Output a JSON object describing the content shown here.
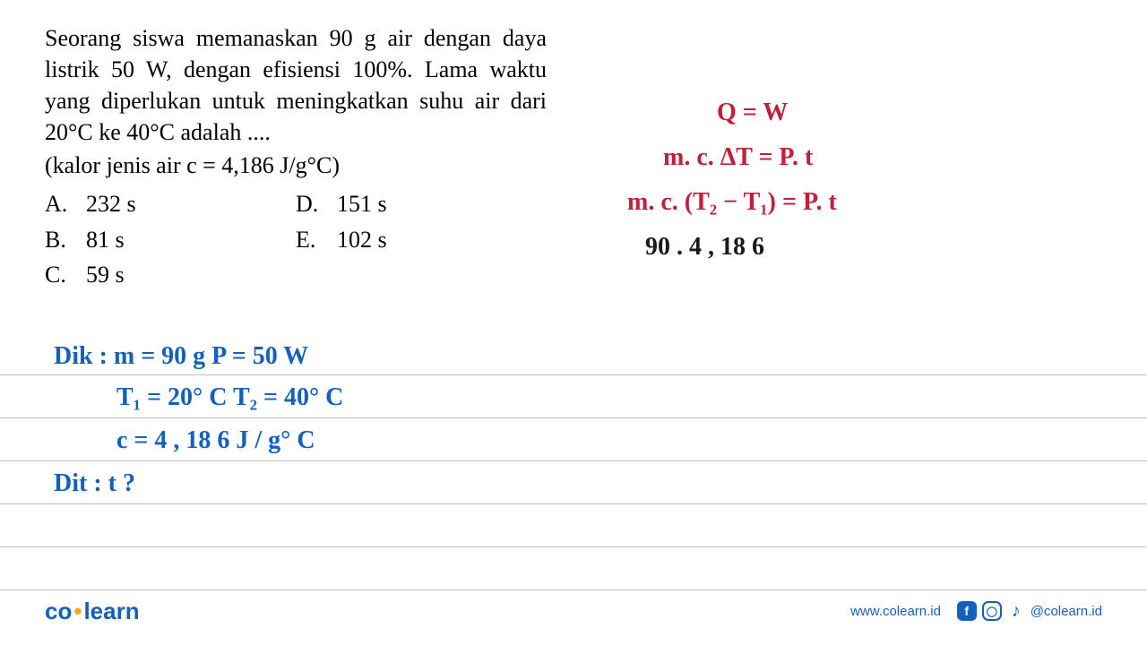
{
  "question": {
    "text_line1": "Seorang siswa memanaskan 90 g air dengan daya listrik 50 W, dengan efisiensi 100%. Lama waktu yang diperlukan untuk meningkatkan suhu air dari 20°C ke 40°C adalah ....",
    "sub": "(kalor jenis air c = 4,186 J/g°C)",
    "options": {
      "A": "232 s",
      "B": "81 s",
      "C": "59 s",
      "D": "151 s",
      "E": "102 s"
    }
  },
  "handwriting_red": {
    "line1": "Q  =   W",
    "line2": "m. c. ΔT  =  P. t",
    "line3": "m. c. (T₂ − T₁) = P. t",
    "line4": "90 . 4 , 18 6"
  },
  "handwriting_blue": {
    "line1": "Dik :  m  = 90 g      P = 50  W",
    "line2": "T₁ = 20° C    T₂ =  40° C",
    "line3": "c  = 4 , 18 6   J / g° C",
    "line4": "Dit :  t ?"
  },
  "footer": {
    "logo_pre": "co",
    "logo_post": "learn",
    "website": "www.colearn.id",
    "handle": "@colearn.id"
  },
  "colors": {
    "red": "#c41e3a",
    "blue": "#1560bd",
    "black": "#1a1a1a",
    "rule": "#c0c0c0",
    "bg": "#ffffff",
    "orange": "#f5a623"
  }
}
